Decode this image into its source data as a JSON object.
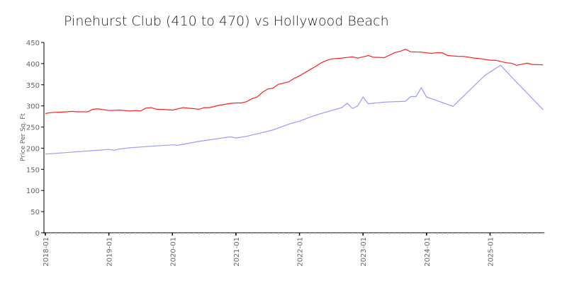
{
  "chart_data": {
    "type": "line",
    "title": "Pinehurst Club (410 to 470) vs Hollywood Beach",
    "xlabel": "",
    "ylabel": "Price Per Sq. Ft",
    "ylim": [
      0,
      450
    ],
    "yticks": [
      "0",
      "50",
      "100",
      "150",
      "200",
      "250",
      "300",
      "350",
      "400",
      "450"
    ],
    "xlim": [
      "2018-01",
      "2025-11"
    ],
    "xticks": [
      "2018-01",
      "2019-01",
      "2020-01",
      "2021-01",
      "2022-01",
      "2023-01",
      "2024-01",
      "2025-01"
    ],
    "grid": false,
    "legend": "none",
    "series": [
      {
        "color": "#ff2020",
        "points": [
          [
            "2018-01",
            282
          ],
          [
            "2018-02",
            284
          ],
          [
            "2018-05",
            286
          ],
          [
            "2018-06",
            287
          ],
          [
            "2018-07",
            286
          ],
          [
            "2018-09",
            286
          ],
          [
            "2018-10",
            292
          ],
          [
            "2018-11",
            293
          ],
          [
            "2019-01",
            289
          ],
          [
            "2019-03",
            290
          ],
          [
            "2019-05",
            288
          ],
          [
            "2019-06",
            289
          ],
          [
            "2019-07",
            288
          ],
          [
            "2019-08",
            295
          ],
          [
            "2019-09",
            296
          ],
          [
            "2019-10",
            292
          ],
          [
            "2019-12",
            291
          ],
          [
            "2020-01",
            290
          ],
          [
            "2020-03",
            296
          ],
          [
            "2020-06",
            292
          ],
          [
            "2020-07",
            296
          ],
          [
            "2020-08",
            296
          ],
          [
            "2020-10",
            302
          ],
          [
            "2020-12",
            306
          ],
          [
            "2021-01",
            307
          ],
          [
            "2021-02",
            307
          ],
          [
            "2021-03",
            310
          ],
          [
            "2021-04",
            317
          ],
          [
            "2021-05",
            321
          ],
          [
            "2021-06",
            332
          ],
          [
            "2021-07",
            340
          ],
          [
            "2021-08",
            342
          ],
          [
            "2021-09",
            351
          ],
          [
            "2021-11",
            357
          ],
          [
            "2021-12",
            365
          ],
          [
            "2022-01",
            371
          ],
          [
            "2022-03",
            386
          ],
          [
            "2022-04",
            393
          ],
          [
            "2022-05",
            401
          ],
          [
            "2022-06",
            407
          ],
          [
            "2022-07",
            411
          ],
          [
            "2022-09",
            413
          ],
          [
            "2022-11",
            416
          ],
          [
            "2022-12",
            413
          ],
          [
            "2023-02",
            419
          ],
          [
            "2023-03",
            415
          ],
          [
            "2023-05",
            414
          ],
          [
            "2023-07",
            426
          ],
          [
            "2023-08",
            429
          ],
          [
            "2023-09",
            434
          ],
          [
            "2023-10",
            428
          ],
          [
            "2023-12",
            427
          ],
          [
            "2024-02",
            424
          ],
          [
            "2024-03",
            426
          ],
          [
            "2024-04",
            425
          ],
          [
            "2024-05",
            419
          ],
          [
            "2024-07",
            417
          ],
          [
            "2024-08",
            417
          ],
          [
            "2024-10",
            413
          ],
          [
            "2024-11",
            412
          ],
          [
            "2025-01",
            408
          ],
          [
            "2025-02",
            408
          ],
          [
            "2025-04",
            402
          ],
          [
            "2025-05",
            401
          ],
          [
            "2025-06",
            396
          ],
          [
            "2025-08",
            401
          ],
          [
            "2025-09",
            398
          ],
          [
            "2025-11",
            397
          ]
        ]
      },
      {
        "color": "#9999ff",
        "points": [
          [
            "2018-01",
            186
          ],
          [
            "2019-01",
            197
          ],
          [
            "2019-02",
            195
          ],
          [
            "2019-03",
            198
          ],
          [
            "2019-05",
            201
          ],
          [
            "2020-01",
            208
          ],
          [
            "2020-02",
            207
          ],
          [
            "2020-06",
            216
          ],
          [
            "2020-12",
            227
          ],
          [
            "2021-01",
            224
          ],
          [
            "2021-03",
            228
          ],
          [
            "2021-08",
            243
          ],
          [
            "2021-11",
            257
          ],
          [
            "2022-01",
            264
          ],
          [
            "2022-04",
            278
          ],
          [
            "2022-09",
            296
          ],
          [
            "2022-10",
            306
          ],
          [
            "2022-11",
            294
          ],
          [
            "2022-12",
            300
          ],
          [
            "2023-01",
            321
          ],
          [
            "2023-02",
            305
          ],
          [
            "2023-05",
            309
          ],
          [
            "2023-09",
            311
          ],
          [
            "2023-10",
            322
          ],
          [
            "2023-11",
            322
          ],
          [
            "2023-12",
            343
          ],
          [
            "2024-01",
            321
          ],
          [
            "2024-06",
            299
          ],
          [
            "2024-12",
            372
          ],
          [
            "2025-03",
            396
          ],
          [
            "2025-05",
            369
          ],
          [
            "2025-11",
            291
          ]
        ]
      }
    ]
  }
}
